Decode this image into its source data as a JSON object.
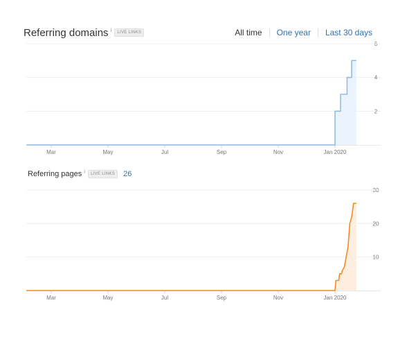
{
  "range_selector": {
    "options": [
      "All time",
      "One year",
      "Last 30 days"
    ],
    "active": "All time"
  },
  "colors": {
    "domains": "#8fbce6",
    "pages": "#f28c28",
    "link": "#2f73b8"
  },
  "chart_data": [
    {
      "type": "area",
      "title": "Referring domains",
      "info_icon": "info-icon",
      "badge": "LIVE LINKS",
      "x_ticks": [
        "Mar",
        "May",
        "Jul",
        "Sep",
        "Nov",
        "Jan 2020"
      ],
      "y_ticks": [
        "2",
        "4",
        "6"
      ],
      "ylim": [
        0,
        6
      ],
      "step": true,
      "color": "#8fbce6",
      "points": [
        [
          "2019-01-31",
          0
        ],
        [
          "2020-01-01",
          0
        ],
        [
          "2020-01-01",
          2
        ],
        [
          "2020-01-07",
          2
        ],
        [
          "2020-01-07",
          3
        ],
        [
          "2020-01-14",
          3
        ],
        [
          "2020-01-14",
          4
        ],
        [
          "2020-01-19",
          4
        ],
        [
          "2020-01-19",
          5
        ],
        [
          "2020-01-24",
          5
        ]
      ]
    },
    {
      "type": "area",
      "title": "Referring pages",
      "info_icon": "info-icon",
      "badge": "LIVE LINKS",
      "count": "26",
      "x_ticks": [
        "Mar",
        "May",
        "Jul",
        "Sep",
        "Nov",
        "Jan 2020"
      ],
      "y_ticks": [
        "10",
        "20",
        "30"
      ],
      "ylim": [
        0,
        30
      ],
      "step": false,
      "color": "#f28c28",
      "points": [
        [
          "2019-01-31",
          0
        ],
        [
          "2020-01-01",
          0
        ],
        [
          "2020-01-02",
          3
        ],
        [
          "2020-01-05",
          3
        ],
        [
          "2020-01-06",
          5
        ],
        [
          "2020-01-08",
          5
        ],
        [
          "2020-01-09",
          6
        ],
        [
          "2020-01-11",
          7
        ],
        [
          "2020-01-13",
          10
        ],
        [
          "2020-01-15",
          13
        ],
        [
          "2020-01-17",
          20
        ],
        [
          "2020-01-19",
          22
        ],
        [
          "2020-01-21",
          26
        ],
        [
          "2020-01-24",
          26
        ]
      ]
    }
  ]
}
